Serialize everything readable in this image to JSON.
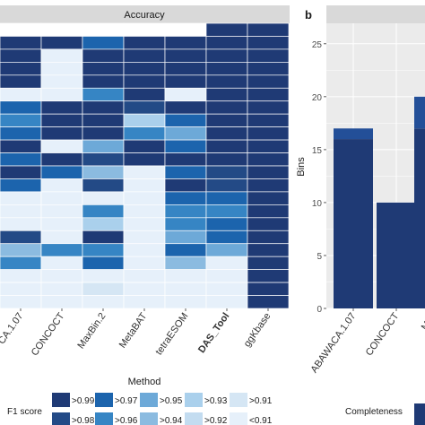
{
  "colors": {
    "gt_0_99": "#1f3a75",
    "gt_0_98": "#234a86",
    "gt_0_97": "#1c64ad",
    "gt_0_96": "#3685c4",
    "gt_0_95": "#6da9d8",
    "gt_0_94": "#8bbbe0",
    "gt_0_93": "#aad0ec",
    "gt_0_92": "#c3dcf0",
    "gt_0_91": "#d5e6f4",
    "lt_0_91": "#e6f0fa",
    "strip": "#d9d9d9",
    "panel_bg": "#ebebeb",
    "grid": "#ffffff",
    "bar_dark": "#1f3a75",
    "bar_mid": "#234f98"
  },
  "chart_data": [
    {
      "type": "heatmap",
      "strip_title": "Accuracy",
      "xlabel": "Method",
      "x_tick_labels": [
        "ABAWACA.1.07",
        "CONCOCT",
        "MaxBin.2",
        "MetaBAT",
        "tetraESOM",
        "DAS_Tool",
        "ggKbase"
      ],
      "x_tick_labels_visible": [
        "CA.1.07",
        "CONCOCT",
        "MaxBin.2",
        "MetaBAT",
        "tetraESOM",
        "DAS_Tool",
        "ggKbase"
      ],
      "columns": [
        "ABAWACA.1.07",
        "CONCOCT",
        "MaxBin.2",
        "MetaBAT",
        "tetraESOM",
        "DAS_Tool",
        "ggKbase"
      ],
      "legend_title": "F1 score",
      "legend": [
        {
          "key": "gt_0_99",
          "label": ">0.99"
        },
        {
          "key": "gt_0_98",
          "label": ">0.98"
        },
        {
          "key": "gt_0_97",
          "label": ">0.97"
        },
        {
          "key": "gt_0_96",
          "label": ">0.96"
        },
        {
          "key": "gt_0_95",
          "label": ">0.95"
        },
        {
          "key": "gt_0_94",
          "label": ">0.94"
        },
        {
          "key": "gt_0_93",
          "label": ">0.93"
        },
        {
          "key": "gt_0_92",
          "label": ">0.92"
        },
        {
          "key": "gt_0_91",
          "label": ">0.91"
        },
        {
          "key": "lt_0_91",
          "label": "<0.91"
        }
      ],
      "rows": [
        [
          null,
          null,
          null,
          null,
          null,
          0.995,
          0.995
        ],
        [
          0.995,
          0.995,
          0.975,
          0.995,
          0.995,
          0.995,
          0.995
        ],
        [
          0.995,
          0.9,
          0.995,
          0.995,
          0.995,
          0.995,
          0.995
        ],
        [
          0.995,
          0.9,
          0.995,
          0.995,
          0.995,
          0.995,
          0.995
        ],
        [
          0.995,
          0.9,
          0.995,
          0.995,
          0.995,
          0.995,
          0.995
        ],
        [
          0.9,
          0.9,
          0.965,
          0.995,
          0.9,
          0.995,
          0.995
        ],
        [
          0.975,
          0.995,
          0.995,
          0.985,
          0.995,
          0.995,
          0.995
        ],
        [
          0.965,
          0.995,
          0.995,
          0.935,
          0.975,
          0.995,
          0.995
        ],
        [
          0.975,
          0.995,
          0.995,
          0.965,
          0.955,
          0.995,
          0.995
        ],
        [
          0.995,
          0.9,
          0.955,
          0.995,
          0.975,
          0.995,
          0.995
        ],
        [
          0.975,
          0.995,
          0.985,
          0.995,
          0.995,
          0.995,
          0.995
        ],
        [
          0.995,
          0.975,
          0.945,
          0.9,
          0.975,
          0.985,
          0.995
        ],
        [
          0.975,
          0.9,
          0.985,
          0.9,
          0.995,
          0.985,
          0.995
        ],
        [
          0.9,
          0.9,
          0.9,
          0.9,
          0.975,
          0.975,
          0.995
        ],
        [
          0.9,
          0.9,
          0.965,
          0.9,
          0.965,
          0.965,
          0.995
        ],
        [
          0.9,
          0.9,
          0.935,
          0.9,
          0.965,
          0.975,
          0.995
        ],
        [
          0.985,
          0.9,
          0.995,
          0.9,
          0.955,
          0.975,
          0.995
        ],
        [
          0.945,
          0.965,
          0.965,
          0.9,
          0.975,
          0.955,
          0.995
        ],
        [
          0.965,
          0.9,
          0.975,
          0.9,
          0.945,
          0.9,
          0.995
        ],
        [
          0.9,
          0.9,
          0.9,
          0.9,
          0.9,
          0.9,
          0.995
        ],
        [
          0.9,
          0.9,
          0.915,
          0.9,
          0.9,
          0.9,
          0.995
        ],
        [
          0.9,
          0.9,
          0.9,
          0.9,
          0.9,
          0.9,
          0.995
        ]
      ]
    },
    {
      "type": "bar",
      "panel_letter": "b",
      "ylabel": "Bins",
      "ylim": [
        0,
        26
      ],
      "y_ticks": [
        0,
        5,
        10,
        15,
        20,
        25
      ],
      "categories": [
        "ABAWACA.1.07",
        "CONCOCT",
        "MaxBin.2"
      ],
      "category_labels_visible": [
        "ABAWACA.1.07",
        "CONCOCT",
        "Max"
      ],
      "series": [
        {
          "name": "",
          "values": [
            16,
            10,
            17
          ]
        },
        {
          "name": "",
          "values": [
            1,
            0,
            3
          ]
        }
      ],
      "legend_title": "Completeness"
    }
  ]
}
